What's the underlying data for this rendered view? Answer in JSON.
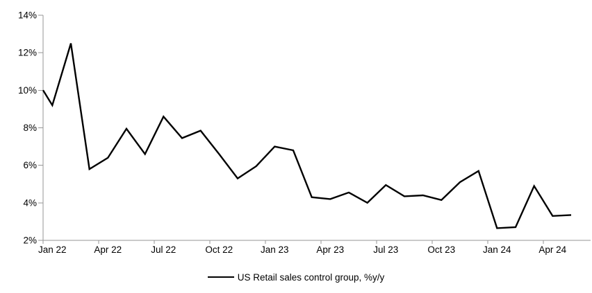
{
  "chart_data": {
    "type": "line",
    "title": "",
    "x_categories": [
      "Jan 22",
      "Feb 22",
      "Mar 22",
      "Apr 22",
      "May 22",
      "Jun 22",
      "Jul 22",
      "Aug 22",
      "Sep 22",
      "Oct 22",
      "Nov 22",
      "Dec 22",
      "Jan 23",
      "Feb 23",
      "Mar 23",
      "Apr 23",
      "May 23",
      "Jun 23",
      "Jul 23",
      "Aug 23",
      "Sep 23",
      "Oct 23",
      "Nov 23",
      "Dec 23",
      "Jan 24",
      "Feb 24",
      "Mar 24",
      "Apr 24",
      "May 24"
    ],
    "series": [
      {
        "name": "US Retail sales control group, %y/y",
        "color": "#000000",
        "values": [
          9.2,
          12.5,
          5.8,
          6.4,
          7.95,
          6.6,
          8.6,
          7.45,
          7.85,
          6.6,
          5.3,
          5.95,
          7.0,
          6.8,
          4.3,
          4.2,
          4.55,
          4.0,
          4.95,
          4.35,
          4.4,
          4.15,
          5.1,
          5.7,
          2.65,
          2.7,
          4.9,
          3.3,
          3.35
        ]
      }
    ],
    "clipped_lead_in_value": 10.0,
    "xlabel": "",
    "ylabel": "",
    "ylim": [
      2,
      14
    ],
    "y_ticks": [
      2,
      4,
      6,
      8,
      10,
      12,
      14
    ],
    "y_tick_labels": [
      "2%",
      "4%",
      "6%",
      "8%",
      "10%",
      "12%",
      "14%"
    ],
    "x_tick_labels": [
      "Jan 22",
      "Apr 22",
      "Jul 22",
      "Oct 22",
      "Jan 23",
      "Apr 23",
      "Jul 23",
      "Oct 23",
      "Jan 24",
      "Apr 24"
    ],
    "x_tick_interval_months": 3,
    "grid": "off",
    "legend_position": "bottom-center",
    "axis_color": "#969696",
    "text_color": "#000000",
    "line_color": "#000000",
    "background": "#ffffff"
  }
}
